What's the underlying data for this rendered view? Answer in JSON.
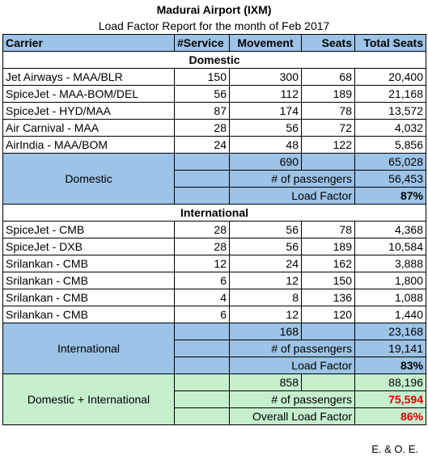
{
  "title": "Madurai Airport (IXM)",
  "subtitle": "Load Factor Report for the month of Feb 2017",
  "headers": [
    "Carrier",
    "#Service",
    "Movement",
    "Seats",
    "Total Seats"
  ],
  "domestic": {
    "label": "Domestic",
    "rows": [
      [
        "Jet Airways - MAA/BLR",
        "150",
        "300",
        "68",
        "20,400"
      ],
      [
        "SpiceJet - MAA-BOM/DEL",
        "56",
        "112",
        "189",
        "21,168"
      ],
      [
        "SpiceJet - HYD/MAA",
        "87",
        "174",
        "78",
        "13,572"
      ],
      [
        "Air Carnival - MAA",
        "28",
        "56",
        "72",
        "4,032"
      ],
      [
        "AirIndia - MAA/BOM",
        "24",
        "48",
        "122",
        "5,856"
      ]
    ],
    "summary_label": "Domestic",
    "movement_total": "690",
    "seats_total": "65,028",
    "pax_label": "# of passengers",
    "pax": "56,453",
    "lf_label": "Load Factor",
    "lf": "87%"
  },
  "international": {
    "label": "International",
    "rows": [
      [
        "SpiceJet - CMB",
        "28",
        "56",
        "78",
        "4,368"
      ],
      [
        "SpiceJet - DXB",
        "28",
        "56",
        "189",
        "10,584"
      ],
      [
        "Srilankan - CMB",
        "12",
        "24",
        "162",
        "3,888"
      ],
      [
        "Srilankan - CMB",
        "6",
        "12",
        "150",
        "1,800"
      ],
      [
        "Srilankan - CMB",
        "4",
        "8",
        "136",
        "1,088"
      ],
      [
        "Srilankan - CMB",
        "6",
        "12",
        "120",
        "1,440"
      ]
    ],
    "summary_label": "International",
    "movement_total": "168",
    "seats_total": "23,168",
    "pax_label": "# of passengers",
    "pax": "19,141",
    "lf_label": "Load Factor",
    "lf": "83%"
  },
  "combined": {
    "summary_label": "Domestic + International",
    "movement_total": "858",
    "seats_total": "88,196",
    "pax_label": "# of passengers",
    "pax": "75,594",
    "lf_label": "Overall Load Factor",
    "lf": "86%"
  },
  "footer": "E. & O. E.",
  "colors": {
    "header_blue": "#9dc3e6",
    "summary_green": "#c6efce",
    "highlight_red": "#e00000"
  }
}
